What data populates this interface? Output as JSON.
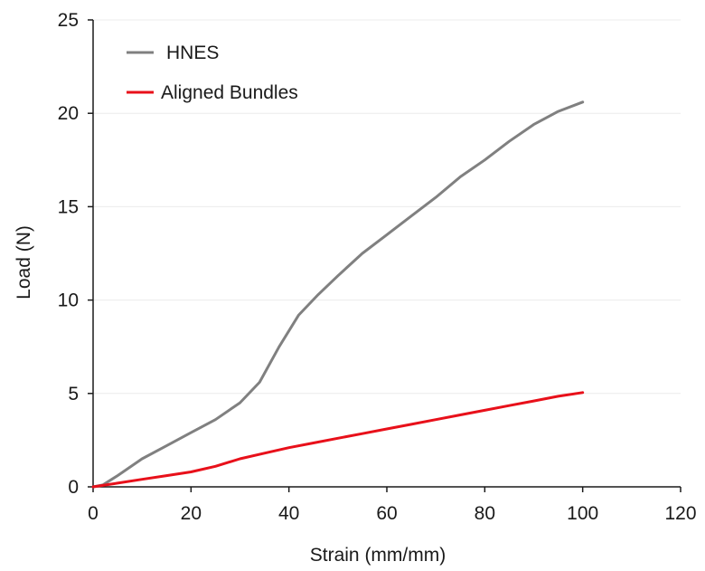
{
  "chart_data": {
    "type": "line",
    "title": "",
    "xlabel": "Strain (mm/mm)",
    "ylabel": "Load (N)",
    "xlim": [
      0,
      120
    ],
    "ylim": [
      0,
      25
    ],
    "x_ticks": [
      0,
      20,
      40,
      60,
      80,
      100,
      120
    ],
    "y_ticks": [
      0,
      5,
      10,
      15,
      20,
      25
    ],
    "grid": "horizontal",
    "legend_position": "top-left",
    "series": [
      {
        "name": "HNES",
        "color": "#808080",
        "points": [
          [
            0,
            0
          ],
          [
            2,
            0.1
          ],
          [
            5,
            0.6
          ],
          [
            10,
            1.5
          ],
          [
            15,
            2.2
          ],
          [
            20,
            2.9
          ],
          [
            25,
            3.6
          ],
          [
            30,
            4.5
          ],
          [
            34,
            5.6
          ],
          [
            38,
            7.5
          ],
          [
            42,
            9.2
          ],
          [
            46,
            10.3
          ],
          [
            50,
            11.3
          ],
          [
            55,
            12.5
          ],
          [
            60,
            13.5
          ],
          [
            65,
            14.5
          ],
          [
            70,
            15.5
          ],
          [
            75,
            16.6
          ],
          [
            80,
            17.5
          ],
          [
            85,
            18.5
          ],
          [
            90,
            19.4
          ],
          [
            95,
            20.1
          ],
          [
            100,
            20.6
          ]
        ]
      },
      {
        "name": "Aligned Bundles",
        "color": "#e8101a",
        "points": [
          [
            0,
            0
          ],
          [
            5,
            0.2
          ],
          [
            10,
            0.4
          ],
          [
            15,
            0.6
          ],
          [
            20,
            0.8
          ],
          [
            25,
            1.1
          ],
          [
            30,
            1.5
          ],
          [
            35,
            1.8
          ],
          [
            40,
            2.1
          ],
          [
            45,
            2.35
          ],
          [
            50,
            2.6
          ],
          [
            55,
            2.85
          ],
          [
            60,
            3.1
          ],
          [
            65,
            3.35
          ],
          [
            70,
            3.6
          ],
          [
            75,
            3.85
          ],
          [
            80,
            4.1
          ],
          [
            85,
            4.35
          ],
          [
            90,
            4.6
          ],
          [
            95,
            4.85
          ],
          [
            100,
            5.05
          ]
        ]
      }
    ]
  }
}
